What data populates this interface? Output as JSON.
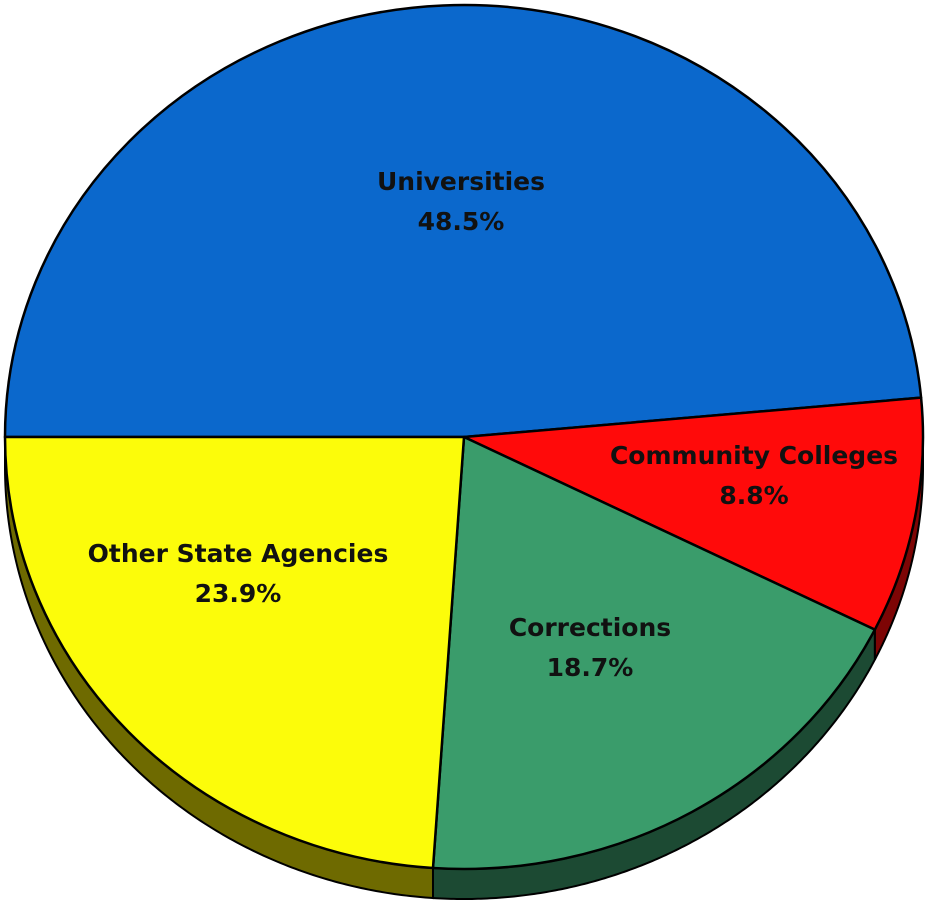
{
  "chart_data": {
    "type": "pie",
    "title": "",
    "slices": [
      {
        "label": "Universities",
        "percent_label": "48.5%",
        "value": 48.5,
        "color": "#0b68cc",
        "side_color": "#073a74"
      },
      {
        "label": "Community Colleges",
        "percent_label": "8.8%",
        "value": 8.8,
        "color": "#ff0a0a",
        "side_color": "#7d0505"
      },
      {
        "label": "Corrections",
        "percent_label": "18.7%",
        "value": 18.7,
        "color": "#3a9c6b",
        "side_color": "#1c4a33"
      },
      {
        "label": "Other State Agencies",
        "percent_label": "23.9%",
        "value": 23.9,
        "color": "#fcfc0a",
        "side_color": "#6e6a00"
      }
    ],
    "style": "3d-tilted",
    "legend": "none"
  }
}
